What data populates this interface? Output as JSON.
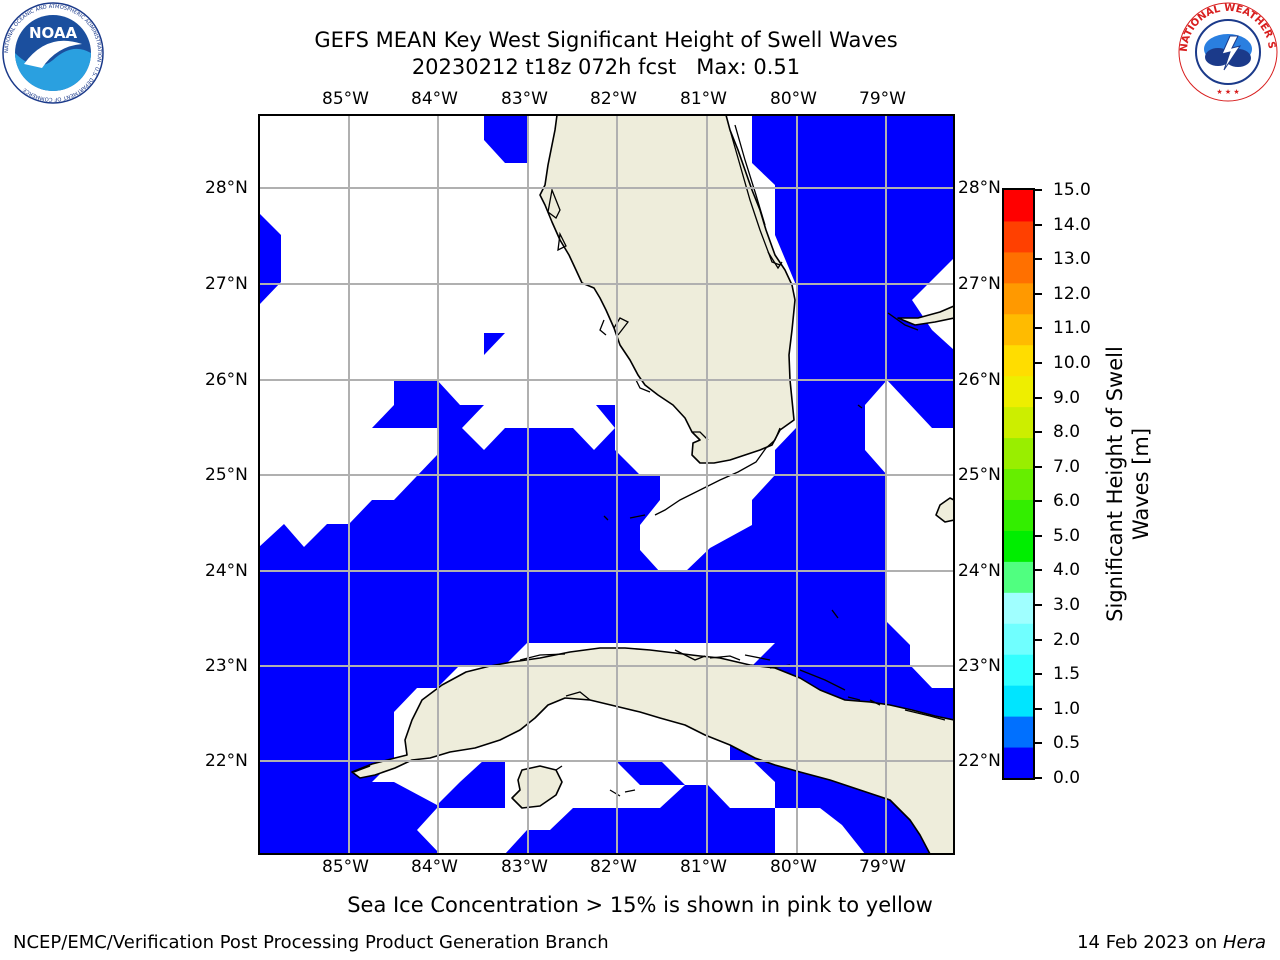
{
  "title": {
    "line1": "GEFS MEAN Key West Significant Height of Swell Waves",
    "line2": "20230212 t18z 072h fcst   Max: 0.51"
  },
  "logos": {
    "noaa_left": {
      "text": "NOAA",
      "ring_text": "NATIONAL OCEANIC AND ATMOSPHERIC ADMINISTRATION · U.S. DEPARTMENT OF COMMERCE"
    },
    "nws_right": {
      "ring_text": "NATIONAL WEATHER SERVICE"
    }
  },
  "map": {
    "lon_labels": [
      "85°W",
      "84°W",
      "83°W",
      "82°W",
      "81°W",
      "80°W",
      "79°W"
    ],
    "lat_labels": [
      "28°N",
      "27°N",
      "26°N",
      "25°N",
      "24°N",
      "23°N",
      "22°N"
    ],
    "lon_range": [
      -86.0,
      -78.25
    ],
    "lat_range": [
      21.0,
      28.75
    ],
    "grid": true,
    "colors": {
      "water_field": "#0000ff",
      "land": "#eeeddb",
      "no_data": "#ffffff",
      "grid": "#b0b0b0",
      "coast": "#000000"
    }
  },
  "colorbar": {
    "label": "Significant Height of Swell Waves [m]",
    "label_line1": "Significant Height of Swell",
    "label_line2": "Waves [m]",
    "ticks": [
      "15.0",
      "14.0",
      "13.0",
      "12.0",
      "11.0",
      "10.0",
      "9.0",
      "8.0",
      "7.0",
      "6.0",
      "5.0",
      "4.0",
      "3.0",
      "2.0",
      "1.5",
      "1.0",
      "0.5",
      "0.0"
    ],
    "colors": [
      "#0000ff",
      "#0070ff",
      "#00e5ff",
      "#33ffff",
      "#70ffff",
      "#a0ffff",
      "#50ff80",
      "#00ee00",
      "#33ee00",
      "#66ee00",
      "#99ee00",
      "#ccee00",
      "#eeee00",
      "#ffdd00",
      "#ffbb00",
      "#ff9900",
      "#ff7000",
      "#ff4000",
      "#ff0000"
    ]
  },
  "footer": {
    "note": "Sea Ice Concentration > 15% is shown in pink to yellow",
    "left": "NCEP/EMC/Verification Post Processing Product Generation Branch",
    "right_date": "14 Feb 2023 on ",
    "right_host": "Hera"
  }
}
